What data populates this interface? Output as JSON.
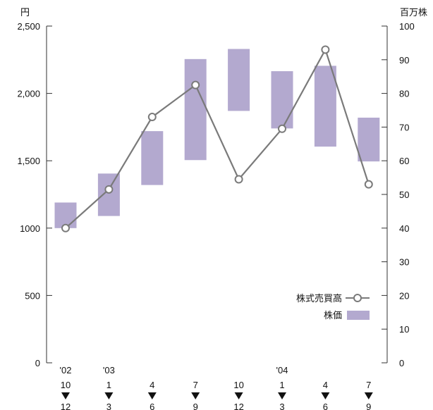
{
  "chart_data": {
    "type": "bar",
    "left_axis": {
      "unit": "円",
      "ticks": [
        "0",
        "500",
        "1000",
        "1,500",
        "2,000",
        "2,500"
      ],
      "range": [
        0,
        2500
      ]
    },
    "right_axis": {
      "unit": "百万株",
      "ticks": [
        "0",
        "10",
        "20",
        "30",
        "40",
        "50",
        "60",
        "70",
        "80",
        "90",
        "100"
      ],
      "range": [
        0,
        100
      ]
    },
    "categories": [
      {
        "year": "'02",
        "from": "10",
        "to": "12"
      },
      {
        "year": "'03",
        "from": "1",
        "to": "3"
      },
      {
        "year": "",
        "from": "4",
        "to": "6"
      },
      {
        "year": "",
        "from": "7",
        "to": "9"
      },
      {
        "year": "",
        "from": "10",
        "to": "12"
      },
      {
        "year": "'04",
        "from": "1",
        "to": "3"
      },
      {
        "year": "",
        "from": "4",
        "to": "6"
      },
      {
        "year": "",
        "from": "7",
        "to": "9"
      }
    ],
    "stock_price_range": {
      "name": "株価",
      "color": "#b3a9cf",
      "values": [
        [
          1000,
          1190
        ],
        [
          1090,
          1405
        ],
        [
          1320,
          1720
        ],
        [
          1505,
          2255
        ],
        [
          1870,
          2330
        ],
        [
          1740,
          2165
        ],
        [
          1605,
          2205
        ],
        [
          1495,
          1820
        ]
      ]
    },
    "trading_volume": {
      "name": "株式売買高",
      "color": "#7a7a7a",
      "values": [
        40,
        51.5,
        73,
        82.5,
        54.5,
        69.5,
        93,
        53
      ]
    }
  }
}
